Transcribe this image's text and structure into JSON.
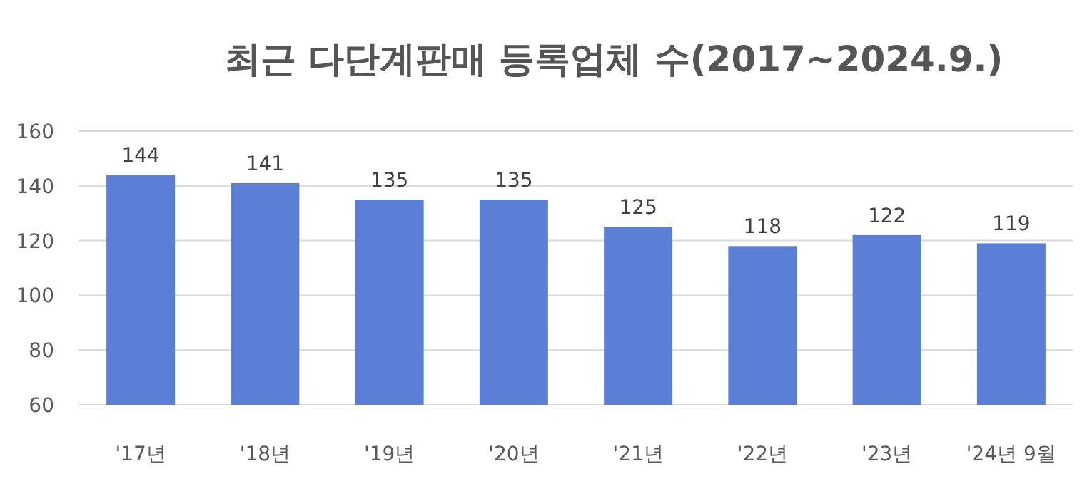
{
  "chart_data": {
    "type": "bar",
    "title": "최근 다단계판매 등록업체 수(2017~2024.9.)",
    "categories": [
      "'17년",
      "'18년",
      "'19년",
      "'20년",
      "'21년",
      "'22년",
      "'23년",
      "'24년 9월"
    ],
    "values": [
      144,
      141,
      135,
      135,
      125,
      118,
      122,
      119
    ],
    "color": "#5b7fd6",
    "ylim": [
      60,
      160
    ],
    "yticks": [
      60,
      80,
      100,
      120,
      140,
      160
    ],
    "grid": "y",
    "data_labels": true
  }
}
